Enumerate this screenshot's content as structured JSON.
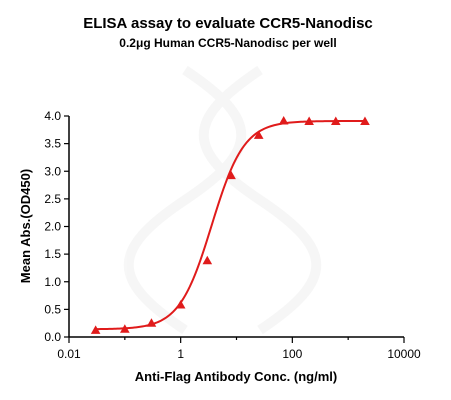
{
  "chart_data": {
    "type": "scatter",
    "title": "ELISA assay to evaluate CCR5-Nanodisc",
    "subtitle": "0.2μg Human CCR5-Nanodisc per well",
    "xlabel": "Anti-Flag Antibody Conc. (ng/ml)",
    "ylabel": "Mean Abs.(OD450)",
    "xscale": "log",
    "xlim": [
      0.01,
      10000
    ],
    "ylim": [
      0,
      4.0
    ],
    "x_ticks": [
      0.01,
      1,
      100,
      10000
    ],
    "x_tick_labels": [
      "0.01",
      "1",
      "100",
      "10000"
    ],
    "y_ticks": [
      0,
      0.5,
      1.0,
      1.5,
      2.0,
      2.5,
      3.0,
      3.5,
      4.0
    ],
    "y_tick_labels": [
      "0.0",
      "0.5",
      "1.0",
      "1.5",
      "2.0",
      "2.5",
      "3.0",
      "3.5",
      "4.0"
    ],
    "grid": false,
    "legend": "none",
    "marker": "triangle",
    "color": "#e01b1b",
    "fit": "4-parameter logistic curve",
    "fit_params": {
      "bottom": 0.14,
      "top": 3.91,
      "ec50": 3.6,
      "hill": 1.5
    },
    "series": [
      {
        "x": [
          0.03,
          0.1,
          0.3,
          1,
          3,
          8,
          25,
          70,
          200,
          600,
          2000
        ],
        "y": [
          0.12,
          0.14,
          0.25,
          0.58,
          1.38,
          2.92,
          3.65,
          3.91,
          3.9,
          3.9,
          3.9
        ]
      }
    ]
  }
}
